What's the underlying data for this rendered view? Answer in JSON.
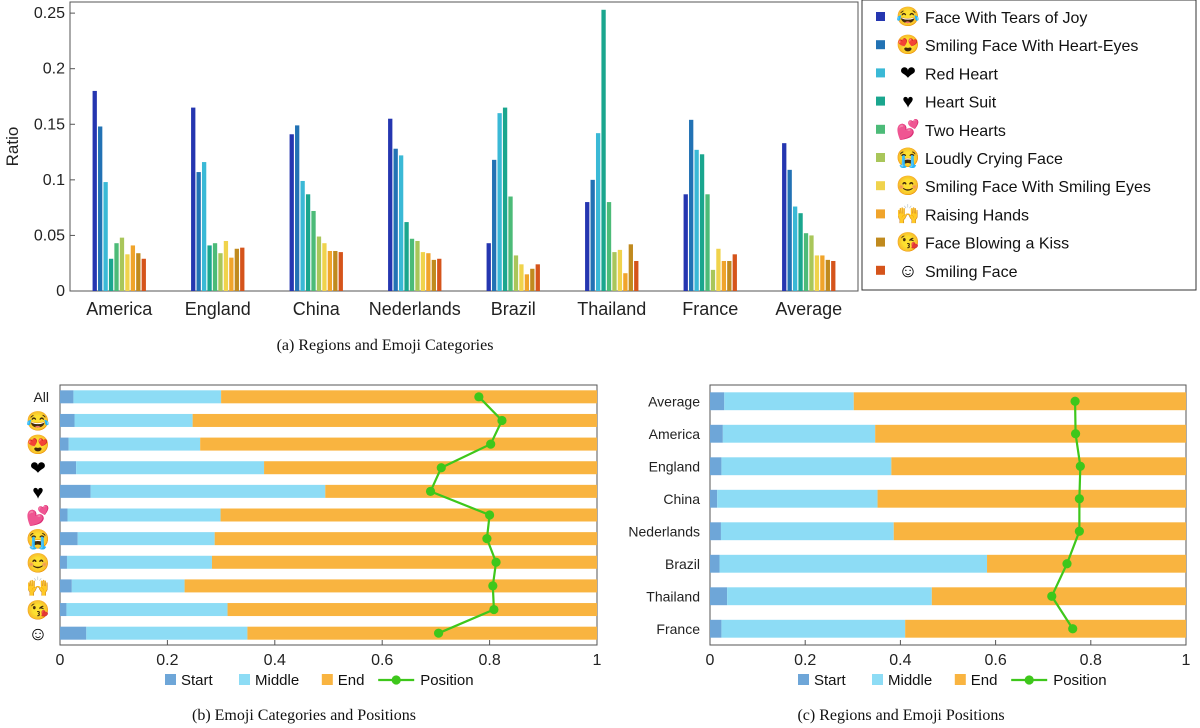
{
  "captions": {
    "a": "(a)  Regions and Emoji Categories",
    "b": "(b)  Emoji Categories and Positions",
    "c": "(c)  Regions and Emoji Positions"
  },
  "chart_data": [
    {
      "type": "bar",
      "ylabel": "Ratio",
      "ylim": [
        0,
        0.26
      ],
      "yticks": [
        "0",
        "0.05",
        "0.1",
        "0.15",
        "0.2",
        "0.25"
      ],
      "legend_position": "right",
      "categories": [
        "America",
        "England",
        "China",
        "Nederlands",
        "Brazil",
        "Thailand",
        "France",
        "Average"
      ],
      "series": [
        {
          "name": "Face With Tears of Joy",
          "emoji": "😂",
          "color": "#2536b0",
          "values": [
            0.18,
            0.165,
            0.141,
            0.155,
            0.043,
            0.08,
            0.087,
            0.133
          ]
        },
        {
          "name": "Smiling Face With Heart-Eyes",
          "emoji": "😍",
          "color": "#2272b4",
          "values": [
            0.148,
            0.107,
            0.149,
            0.128,
            0.118,
            0.1,
            0.154,
            0.109
          ]
        },
        {
          "name": "Red Heart",
          "emoji": "❤",
          "color": "#3ab9d6",
          "values": [
            0.098,
            0.116,
            0.099,
            0.122,
            0.16,
            0.142,
            0.127,
            0.076
          ]
        },
        {
          "name": "Heart Suit",
          "emoji": "♥",
          "color": "#1aa68e",
          "values": [
            0.029,
            0.041,
            0.087,
            0.062,
            0.165,
            0.253,
            0.123,
            0.07
          ]
        },
        {
          "name": "Two Hearts",
          "emoji": "💕",
          "color": "#4cbb78",
          "values": [
            0.043,
            0.043,
            0.072,
            0.047,
            0.085,
            0.08,
            0.087,
            0.052
          ]
        },
        {
          "name": "Loudly Crying Face",
          "emoji": "😭",
          "color": "#a9c65a",
          "values": [
            0.048,
            0.034,
            0.049,
            0.045,
            0.032,
            0.035,
            0.019,
            0.05
          ]
        },
        {
          "name": "Smiling Face With Smiling Eyes",
          "emoji": "😊",
          "color": "#f0d34c",
          "values": [
            0.033,
            0.045,
            0.043,
            0.035,
            0.024,
            0.037,
            0.038,
            0.032
          ]
        },
        {
          "name": "Raising Hands",
          "emoji": "🙌",
          "color": "#f0a42b",
          "values": [
            0.041,
            0.03,
            0.036,
            0.034,
            0.015,
            0.016,
            0.027,
            0.032
          ]
        },
        {
          "name": "Face Blowing a Kiss",
          "emoji": "😘",
          "color": "#c08a1e",
          "values": [
            0.034,
            0.038,
            0.036,
            0.028,
            0.02,
            0.042,
            0.027,
            0.028
          ]
        },
        {
          "name": "Smiling Face",
          "emoji": "☺",
          "color": "#d5541b",
          "values": [
            0.029,
            0.039,
            0.035,
            0.029,
            0.024,
            0.027,
            0.033,
            0.027
          ]
        }
      ]
    },
    {
      "type": "bar",
      "orientation": "horizontal-stacked",
      "xlim": [
        0,
        1
      ],
      "xticks": [
        "0",
        "0.2",
        "0.4",
        "0.6",
        "0.8",
        "1"
      ],
      "legend_position": "bottom",
      "categories": [
        "All",
        "😂",
        "😍",
        "❤",
        "♥",
        "💕",
        "😭",
        "😊",
        "🙌",
        "😘",
        "☺"
      ],
      "series": [
        {
          "name": "Start",
          "color": "#6ea6d8",
          "values": [
            0.025,
            0.027,
            0.016,
            0.03,
            0.057,
            0.014,
            0.033,
            0.013,
            0.022,
            0.012,
            0.049
          ]
        },
        {
          "name": "Middle",
          "color": "#8ddcf5",
          "values": [
            0.275,
            0.22,
            0.245,
            0.35,
            0.437,
            0.285,
            0.255,
            0.27,
            0.21,
            0.3,
            0.3
          ]
        },
        {
          "name": "End",
          "color": "#f9b440",
          "values": [
            0.7,
            0.753,
            0.739,
            0.62,
            0.506,
            0.701,
            0.712,
            0.717,
            0.768,
            0.688,
            0.651
          ]
        },
        {
          "name": "Position",
          "color": "#3ec71b",
          "type": "line",
          "values": [
            0.78,
            0.823,
            0.802,
            0.71,
            0.69,
            0.8,
            0.795,
            0.812,
            0.806,
            0.808,
            0.705
          ]
        }
      ]
    },
    {
      "type": "bar",
      "orientation": "horizontal-stacked",
      "xlim": [
        0,
        1
      ],
      "xticks": [
        "0",
        "0.2",
        "0.4",
        "0.6",
        "0.8",
        "1"
      ],
      "legend_position": "bottom",
      "categories": [
        "Average",
        "America",
        "England",
        "China",
        "Nederlands",
        "Brazil",
        "Thailand",
        "France"
      ],
      "series": [
        {
          "name": "Start",
          "color": "#6ea6d8",
          "values": [
            0.03,
            0.027,
            0.024,
            0.015,
            0.023,
            0.02,
            0.036,
            0.024
          ]
        },
        {
          "name": "Middle",
          "color": "#8ddcf5",
          "values": [
            0.272,
            0.32,
            0.357,
            0.337,
            0.363,
            0.562,
            0.43,
            0.386
          ]
        },
        {
          "name": "End",
          "color": "#f9b440",
          "values": [
            0.698,
            0.653,
            0.619,
            0.648,
            0.614,
            0.418,
            0.534,
            0.59
          ]
        },
        {
          "name": "Position",
          "color": "#3ec71b",
          "type": "line",
          "values": [
            0.767,
            0.768,
            0.778,
            0.776,
            0.776,
            0.75,
            0.718,
            0.762
          ]
        }
      ]
    }
  ]
}
